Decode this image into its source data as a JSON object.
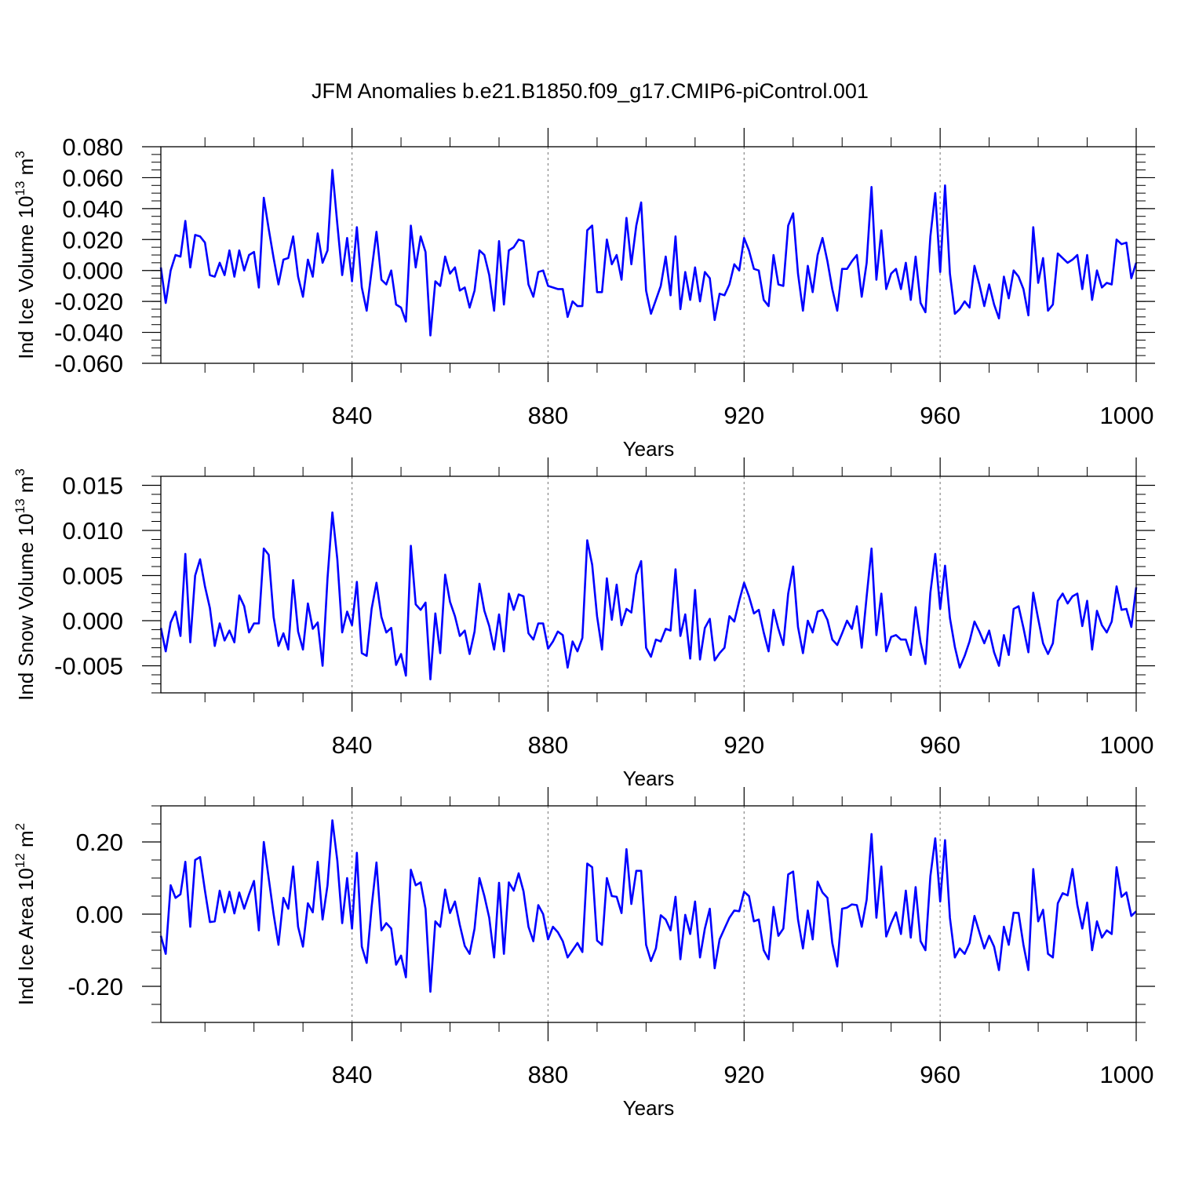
{
  "title": "JFM Anomalies b.e21.B1850.f09_g17.CMIP6-piControl.001",
  "line_color": "#0000ff",
  "chart_data": [
    {
      "type": "line",
      "ylabel": "Ind Ice Volume 10",
      "ylabel_exp": "13",
      "ylabel_unit": " m",
      "ylabel_unit_exp": "3",
      "xlabel": "Years",
      "xlim": [
        801,
        1000
      ],
      "ylim": [
        -0.06,
        0.08
      ],
      "yticks": [
        -0.06,
        -0.04,
        -0.02,
        0.0,
        0.02,
        0.04,
        0.06,
        0.08
      ],
      "ytick_labels": [
        "-0.060",
        "-0.040",
        "-0.020",
        "0.000",
        "0.020",
        "0.040",
        "0.060",
        "0.080"
      ],
      "ytick_minor_step": 0.005,
      "xticks": [
        840,
        880,
        920,
        960,
        1000
      ],
      "xtick_labels": [
        "840",
        "880",
        "920",
        "960",
        "1000"
      ],
      "xtick_minor": [
        810,
        820,
        830,
        850,
        860,
        870,
        890,
        900,
        910,
        930,
        940,
        950,
        970,
        980,
        990
      ],
      "grid_x": [
        840,
        880,
        920,
        960
      ],
      "series": [
        {
          "x_start": 801,
          "values": [
            0.002,
            -0.021,
            0.0,
            0.01,
            0.009,
            0.032,
            0.002,
            0.023,
            0.022,
            0.018,
            -0.003,
            -0.004,
            0.005,
            -0.003,
            0.013,
            -0.004,
            0.013,
            0.0,
            0.01,
            0.012,
            -0.011,
            0.047,
            0.027,
            0.008,
            -0.009,
            0.007,
            0.008,
            0.022,
            -0.004,
            -0.017,
            0.007,
            -0.004,
            0.024,
            0.005,
            0.013,
            0.065,
            0.03,
            -0.003,
            0.021,
            -0.007,
            0.028,
            -0.011,
            -0.026,
            0.0,
            0.025,
            -0.006,
            -0.009,
            0.0,
            -0.022,
            -0.024,
            -0.033,
            0.029,
            0.002,
            0.022,
            0.012,
            -0.042,
            -0.007,
            -0.01,
            0.009,
            -0.002,
            0.002,
            -0.013,
            -0.011,
            -0.024,
            -0.013,
            0.013,
            0.01,
            -0.003,
            -0.026,
            0.019,
            -0.022,
            0.013,
            0.015,
            0.02,
            0.019,
            -0.009,
            -0.017,
            -0.001,
            0.0,
            -0.01,
            -0.011,
            -0.012,
            -0.012,
            -0.03,
            -0.02,
            -0.023,
            -0.023,
            0.026,
            0.029,
            -0.014,
            -0.014,
            0.02,
            0.004,
            0.01,
            -0.006,
            0.034,
            0.004,
            0.029,
            0.044,
            -0.013,
            -0.028,
            -0.019,
            -0.01,
            0.009,
            -0.016,
            0.022,
            -0.025,
            -0.001,
            -0.019,
            0.002,
            -0.02,
            -0.001,
            -0.005,
            -0.032,
            -0.015,
            -0.016,
            -0.009,
            0.004,
            0.0,
            0.021,
            0.013,
            0.001,
            0.0,
            -0.019,
            -0.023,
            0.01,
            -0.009,
            -0.01,
            0.029,
            0.037,
            -0.002,
            -0.026,
            0.003,
            -0.014,
            0.01,
            0.021,
            0.006,
            -0.012,
            -0.026,
            0.001,
            0.001,
            0.006,
            0.01,
            -0.017,
            0.005,
            0.054,
            -0.006,
            0.026,
            -0.012,
            -0.002,
            0.001,
            -0.012,
            0.005,
            -0.019,
            0.009,
            -0.021,
            -0.027,
            0.022,
            0.05,
            -0.001,
            0.055,
            -0.002,
            -0.028,
            -0.025,
            -0.02,
            -0.024,
            0.003,
            -0.009,
            -0.023,
            -0.009,
            -0.022,
            -0.031,
            -0.004,
            -0.018,
            0.0,
            -0.004,
            -0.012,
            -0.029,
            0.028,
            -0.008,
            0.008,
            -0.026,
            -0.022,
            0.011,
            0.008,
            0.005,
            0.007,
            0.01,
            -0.012,
            0.01,
            -0.019,
            0.0,
            -0.011,
            -0.008,
            -0.009,
            0.02,
            0.017,
            0.018,
            -0.005,
            0.005
          ]
        }
      ]
    },
    {
      "type": "line",
      "ylabel": "Ind Snow Volume 10",
      "ylabel_exp": "13",
      "ylabel_unit": " m",
      "ylabel_unit_exp": "3",
      "xlabel": "Years",
      "xlim": [
        801,
        1000
      ],
      "ylim": [
        -0.008,
        0.016
      ],
      "yticks": [
        -0.005,
        0.0,
        0.005,
        0.01,
        0.015
      ],
      "ytick_labels": [
        "-0.005",
        "0.000",
        "0.005",
        "0.010",
        "0.015"
      ],
      "ytick_minor_step": 0.001,
      "xticks": [
        840,
        880,
        920,
        960,
        1000
      ],
      "xtick_labels": [
        "840",
        "880",
        "920",
        "960",
        "1000"
      ],
      "xtick_minor": [
        810,
        820,
        830,
        850,
        860,
        870,
        890,
        900,
        910,
        930,
        940,
        950,
        970,
        980,
        990
      ],
      "grid_x": [
        840,
        880,
        920,
        960
      ],
      "series": [
        {
          "x_start": 801,
          "values": [
            -0.0008,
            -0.0034,
            -0.0002,
            0.001,
            -0.0017,
            0.0074,
            -0.0024,
            0.005,
            0.0068,
            0.0038,
            0.0014,
            -0.0028,
            -0.0003,
            -0.0022,
            -0.0011,
            -0.0024,
            0.0028,
            0.0016,
            -0.0013,
            -0.0003,
            -0.0003,
            0.008,
            0.0073,
            0.0004,
            -0.0028,
            -0.0014,
            -0.0032,
            0.0045,
            -0.0012,
            -0.0032,
            0.0019,
            -0.0009,
            -0.0002,
            -0.005,
            0.0047,
            0.012,
            0.0068,
            -0.0013,
            0.001,
            -0.0005,
            0.0043,
            -0.0036,
            -0.0039,
            0.0013,
            0.0042,
            0.0004,
            -0.0013,
            -0.0008,
            -0.0049,
            -0.0037,
            -0.0061,
            0.0083,
            0.0018,
            0.0012,
            0.002,
            -0.0065,
            0.0008,
            -0.0036,
            0.0051,
            0.0021,
            0.0005,
            -0.0017,
            -0.0011,
            -0.0037,
            -0.0012,
            0.0041,
            0.0011,
            -0.0006,
            -0.0032,
            0.0007,
            -0.0034,
            0.003,
            0.0012,
            0.0029,
            0.0027,
            -0.0014,
            -0.0021,
            -0.0003,
            -0.0003,
            -0.0031,
            -0.0023,
            -0.0012,
            -0.0016,
            -0.0052,
            -0.0023,
            -0.0034,
            -0.0019,
            0.0089,
            0.0062,
            0.0005,
            -0.0032,
            0.0047,
            0.0001,
            0.004,
            -0.0005,
            0.0013,
            0.0009,
            0.0051,
            0.0066,
            -0.003,
            -0.004,
            -0.0021,
            -0.0023,
            -0.0009,
            -0.0011,
            0.0057,
            -0.0017,
            0.0007,
            -0.0042,
            0.0034,
            -0.0043,
            -0.0008,
            0.0002,
            -0.0044,
            -0.0036,
            -0.003,
            0.0005,
            -0.0001,
            0.0022,
            0.0042,
            0.0027,
            0.0008,
            0.0012,
            -0.0013,
            -0.0034,
            0.0012,
            -0.0009,
            -0.0027,
            0.003,
            0.006,
            -0.0007,
            -0.0036,
            0.0,
            -0.0013,
            0.001,
            0.0012,
            0.0001,
            -0.0021,
            -0.0027,
            -0.0014,
            0.0,
            -0.0009,
            0.0016,
            -0.003,
            0.0027,
            0.008,
            -0.0016,
            0.003,
            -0.0034,
            -0.0018,
            -0.0016,
            -0.0021,
            -0.0021,
            -0.0038,
            0.0015,
            -0.0024,
            -0.0048,
            0.0031,
            0.0074,
            0.0013,
            0.0061,
            0.0003,
            -0.0029,
            -0.0052,
            -0.0039,
            -0.0023,
            -0.0001,
            -0.0012,
            -0.0025,
            -0.0011,
            -0.0035,
            -0.005,
            -0.0016,
            -0.0038,
            0.0013,
            0.0016,
            -0.0008,
            -0.0035,
            0.0031,
            0.0002,
            -0.0025,
            -0.0037,
            -0.0025,
            0.0022,
            0.003,
            0.0019,
            0.0027,
            0.003,
            -0.0006,
            0.0022,
            -0.0032,
            0.0011,
            -0.0005,
            -0.0013,
            -0.0001,
            0.0038,
            0.0012,
            0.0013,
            -0.0007,
            0.0037
          ]
        }
      ]
    },
    {
      "type": "line",
      "ylabel": "Ind Ice Area 10",
      "ylabel_exp": "12",
      "ylabel_unit": " m",
      "ylabel_unit_exp": "2",
      "xlabel": "Years",
      "xlim": [
        801,
        1000
      ],
      "ylim": [
        -0.3,
        0.3
      ],
      "yticks": [
        -0.2,
        0.0,
        0.2
      ],
      "ytick_labels": [
        "-0.20",
        "0.00",
        "0.20"
      ],
      "ytick_minor_step": 0.05,
      "xticks": [
        840,
        880,
        920,
        960,
        1000
      ],
      "xtick_labels": [
        "840",
        "880",
        "920",
        "960",
        "1000"
      ],
      "xtick_minor": [
        810,
        820,
        830,
        850,
        860,
        870,
        890,
        900,
        910,
        930,
        940,
        950,
        970,
        980,
        990
      ],
      "grid_x": [
        840,
        880,
        920,
        960
      ],
      "series": [
        {
          "x_start": 801,
          "values": [
            -0.06,
            -0.11,
            0.08,
            0.045,
            0.055,
            0.145,
            -0.035,
            0.15,
            0.158,
            0.065,
            -0.022,
            -0.02,
            0.065,
            0.005,
            0.062,
            0.002,
            0.06,
            0.015,
            0.055,
            0.092,
            -0.045,
            0.2,
            0.1,
            0.0,
            -0.085,
            0.045,
            0.015,
            0.132,
            -0.035,
            -0.09,
            0.03,
            0.005,
            0.145,
            -0.015,
            0.08,
            0.26,
            0.148,
            -0.025,
            0.1,
            -0.04,
            0.17,
            -0.09,
            -0.135,
            0.02,
            0.143,
            -0.045,
            -0.025,
            -0.04,
            -0.14,
            -0.115,
            -0.175,
            0.123,
            0.08,
            0.088,
            0.015,
            -0.215,
            -0.02,
            -0.035,
            0.068,
            0.003,
            0.035,
            -0.03,
            -0.088,
            -0.11,
            -0.04,
            0.1,
            0.05,
            -0.01,
            -0.12,
            0.087,
            -0.11,
            0.088,
            0.065,
            0.113,
            0.063,
            -0.035,
            -0.075,
            0.025,
            0.0,
            -0.07,
            -0.035,
            -0.05,
            -0.075,
            -0.12,
            -0.1,
            -0.08,
            -0.105,
            0.14,
            0.13,
            -0.073,
            -0.085,
            0.1,
            0.05,
            0.048,
            0.003,
            0.18,
            0.028,
            0.12,
            0.12,
            -0.085,
            -0.13,
            -0.095,
            -0.003,
            -0.015,
            -0.045,
            0.048,
            -0.125,
            -0.002,
            -0.055,
            0.035,
            -0.12,
            -0.04,
            0.015,
            -0.15,
            -0.07,
            -0.04,
            -0.01,
            0.01,
            0.008,
            0.062,
            0.05,
            -0.02,
            -0.015,
            -0.1,
            -0.125,
            0.02,
            -0.06,
            -0.04,
            0.11,
            0.118,
            -0.015,
            -0.095,
            0.01,
            -0.07,
            0.09,
            0.06,
            0.045,
            -0.08,
            -0.145,
            0.015,
            0.018,
            0.027,
            0.025,
            -0.035,
            0.04,
            0.222,
            -0.01,
            0.132,
            -0.062,
            -0.025,
            0.005,
            -0.055,
            0.065,
            -0.065,
            0.075,
            -0.075,
            -0.1,
            0.105,
            0.21,
            0.035,
            0.205,
            -0.01,
            -0.12,
            -0.095,
            -0.11,
            -0.08,
            -0.005,
            -0.05,
            -0.095,
            -0.06,
            -0.09,
            -0.155,
            -0.035,
            -0.085,
            0.004,
            0.003,
            -0.085,
            -0.155,
            0.125,
            -0.02,
            0.012,
            -0.11,
            -0.12,
            0.03,
            0.058,
            0.052,
            0.125,
            0.025,
            -0.04,
            0.032,
            -0.1,
            -0.02,
            -0.065,
            -0.045,
            -0.055,
            0.13,
            0.048,
            0.06,
            -0.005,
            0.008
          ]
        }
      ]
    }
  ]
}
